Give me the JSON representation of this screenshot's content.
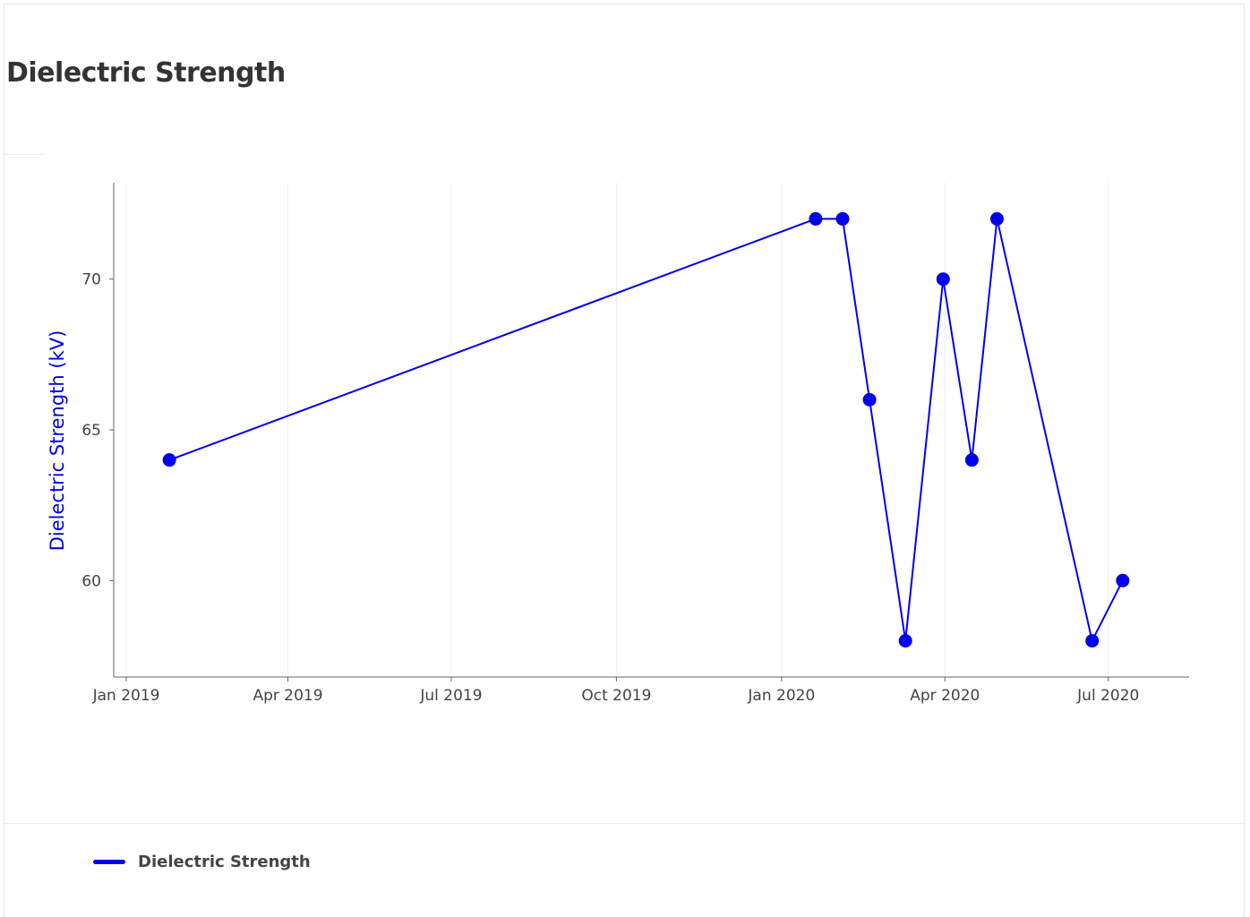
{
  "page": {
    "title": "Dielectric Strength"
  },
  "colors": {
    "series": "#0000ee",
    "grid": "#eeeeee",
    "axis": "#666666",
    "tick_text": "#444444"
  },
  "legend": {
    "label": "Dielectric Strength"
  },
  "chart_data": {
    "type": "line",
    "title": "",
    "xlabel": "",
    "ylabel": "Dielectric Strength (kV)",
    "x_ticks": [
      {
        "date": "2019-01-01",
        "label": "Jan 2019"
      },
      {
        "date": "2019-04-01",
        "label": "Apr 2019"
      },
      {
        "date": "2019-07-01",
        "label": "Jul 2019"
      },
      {
        "date": "2019-10-01",
        "label": "Oct 2019"
      },
      {
        "date": "2020-01-01",
        "label": "Jan 2020"
      },
      {
        "date": "2020-04-01",
        "label": "Apr 2020"
      },
      {
        "date": "2020-07-01",
        "label": "Jul 2020"
      }
    ],
    "xlim": [
      "2018-12-25",
      "2020-08-15"
    ],
    "y_ticks": [
      60,
      65,
      70
    ],
    "ylim": [
      56.8,
      73.2
    ],
    "grid": {
      "vertical": true,
      "horizontal": false
    },
    "legend_position": "bottom-left",
    "series": [
      {
        "name": "Dielectric Strength",
        "color": "#0000ee",
        "points": [
          {
            "x": "2019-01-25",
            "y": 64
          },
          {
            "x": "2020-01-20",
            "y": 72
          },
          {
            "x": "2020-02-04",
            "y": 72
          },
          {
            "x": "2020-02-19",
            "y": 66
          },
          {
            "x": "2020-03-10",
            "y": 58
          },
          {
            "x": "2020-03-31",
            "y": 70
          },
          {
            "x": "2020-04-16",
            "y": 64
          },
          {
            "x": "2020-04-30",
            "y": 72
          },
          {
            "x": "2020-06-22",
            "y": 58
          },
          {
            "x": "2020-07-09",
            "y": 60
          }
        ]
      }
    ]
  }
}
